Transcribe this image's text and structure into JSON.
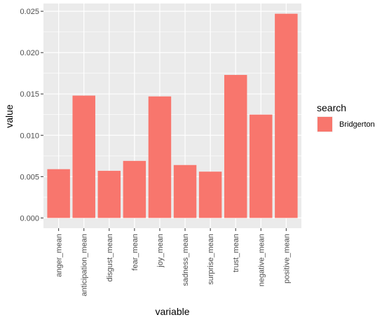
{
  "chart_data": {
    "type": "bar",
    "categories": [
      "anger_mean",
      "anticipation_mean",
      "disgust_mean",
      "fear_mean",
      "joy_mean",
      "sadness_mean",
      "surprise_mean",
      "trust_mean",
      "negative_mean",
      "positive_mean"
    ],
    "series": [
      {
        "name": "Bridgerton",
        "color": "#F8766D",
        "values": [
          0.0059,
          0.0148,
          0.0057,
          0.0069,
          0.0147,
          0.0064,
          0.0056,
          0.0173,
          0.0125,
          0.0247
        ]
      }
    ],
    "xlabel": "variable",
    "ylabel": "value",
    "ylim": [
      -0.00124,
      0.02594
    ],
    "yticks": [
      0.0,
      0.005,
      0.01,
      0.015,
      0.02,
      0.025
    ],
    "ytick_labels": [
      "0.000",
      "0.005",
      "0.010",
      "0.015",
      "0.020",
      "0.025"
    ],
    "legend": {
      "title": "search",
      "position": "right"
    },
    "grid": true,
    "panel_background": "#EBEBEB",
    "grid_color": "#FFFFFF"
  }
}
